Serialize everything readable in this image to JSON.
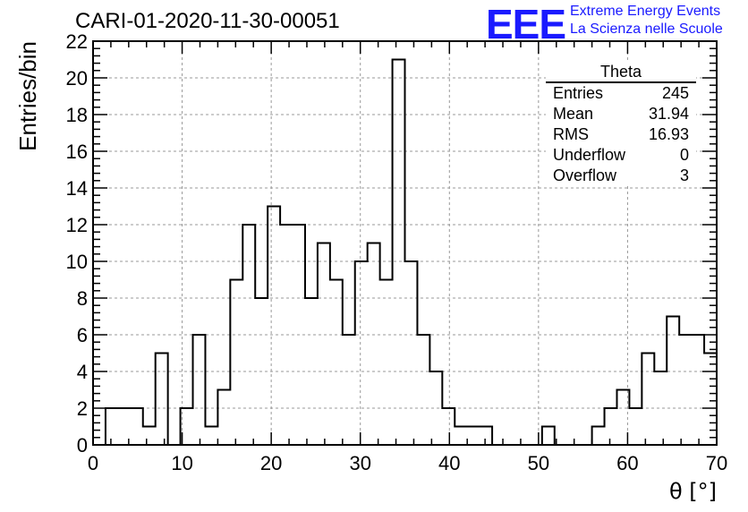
{
  "title": "CARI-01-2020-11-30-00051",
  "logo": {
    "mark": "EEE",
    "line1": "Extreme Energy Events",
    "line2": "La Scienza nelle Scuole",
    "color": "#1a1aff"
  },
  "stats": {
    "title": "Theta",
    "rows": [
      {
        "label": "Entries",
        "value": "245"
      },
      {
        "label": "Mean",
        "value": "31.94"
      },
      {
        "label": "RMS",
        "value": "16.93"
      },
      {
        "label": "Underflow",
        "value": "0"
      },
      {
        "label": "Overflow",
        "value": "3"
      }
    ]
  },
  "chart_data": {
    "type": "bar",
    "histogram": true,
    "xlabel": "θ [°]",
    "ylabel": "Entries/bin",
    "xlim": [
      0,
      70
    ],
    "ylim": [
      0,
      22
    ],
    "grid": true,
    "bin_width": 1.4,
    "x_ticks": [
      0,
      10,
      20,
      30,
      40,
      50,
      60,
      70
    ],
    "y_ticks": [
      0,
      2,
      4,
      6,
      8,
      10,
      12,
      14,
      16,
      18,
      20,
      22
    ],
    "values": [
      0,
      2,
      2,
      2,
      1,
      5,
      0,
      2,
      6,
      1,
      3,
      9,
      12,
      8,
      13,
      12,
      12,
      8,
      11,
      9,
      6,
      10,
      11,
      9,
      21,
      10,
      6,
      4,
      2,
      1,
      1,
      1,
      0,
      0,
      0,
      0,
      1,
      0,
      0,
      0,
      1,
      2,
      3,
      2,
      5,
      4,
      7,
      6,
      6,
      5
    ]
  }
}
